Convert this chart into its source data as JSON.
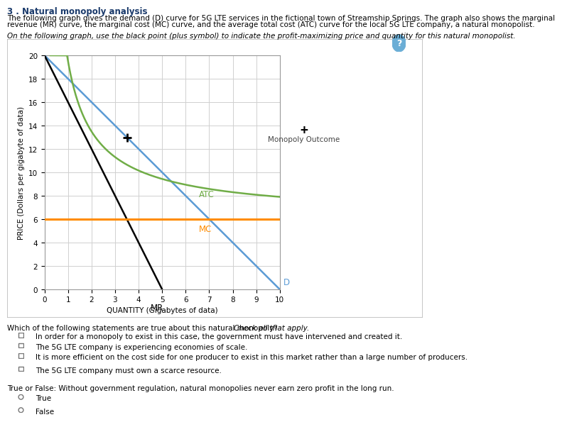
{
  "title": "3 . Natural monopoly analysis",
  "para1_line1": "The following graph gives the demand (D) curve for 5G LTE services in the fictional town of Streamship Springs. The graph also shows the marginal",
  "para1_line2": "revenue (MR) curve, the marginal cost (MC) curve, and the average total cost (ATC) curve for the local 5G LTE company, a natural monopolist.",
  "italic_instruction": "On the following graph, use the black point (plus symbol) to indicate the profit-maximizing price and quantity for this natural monopolist.",
  "xlim": [
    0,
    10
  ],
  "ylim": [
    0,
    20
  ],
  "xticks": [
    0,
    1,
    2,
    3,
    4,
    5,
    6,
    7,
    8,
    9,
    10
  ],
  "yticks": [
    0,
    2,
    4,
    6,
    8,
    10,
    12,
    14,
    16,
    18,
    20
  ],
  "xlabel": "QUANTITY (Gigabytes of data)",
  "ylabel": "PRICE (Dollars per gigabyte of data)",
  "mc_value": 6.0,
  "mc_color": "#FF8C00",
  "d_color": "#5B9BD5",
  "mr_color": "#000000",
  "atc_color": "#70AD47",
  "monopoly_point_x": 3.5,
  "monopoly_point_y": 13.0,
  "legend_label": "Monopoly Outcome",
  "bg_color": "#FFFFFF",
  "grid_color": "#D0D0D0",
  "chart_border_color": "#CCCCCC",
  "question_section": "Which of the following statements are true about this natural monopoly? ",
  "question_italic": "Check all that apply.",
  "checkboxes": [
    "In order for a monopoly to exist in this case, the government must have intervened and created it.",
    "The 5G LTE company is experiencing economies of scale.",
    "It is more efficient on the cost side for one producer to exist in this market rather than a large number of producers.",
    "The 5G LTE company must own a scarce resource."
  ],
  "true_false_q": "True or False: Without government regulation, natural monopolies never earn zero profit in the long run.",
  "radio_options": [
    "True",
    "False"
  ],
  "title_color": "#1a3a6b",
  "text_color": "#000000",
  "label_fontsize": 7.5,
  "tick_fontsize": 7.5
}
